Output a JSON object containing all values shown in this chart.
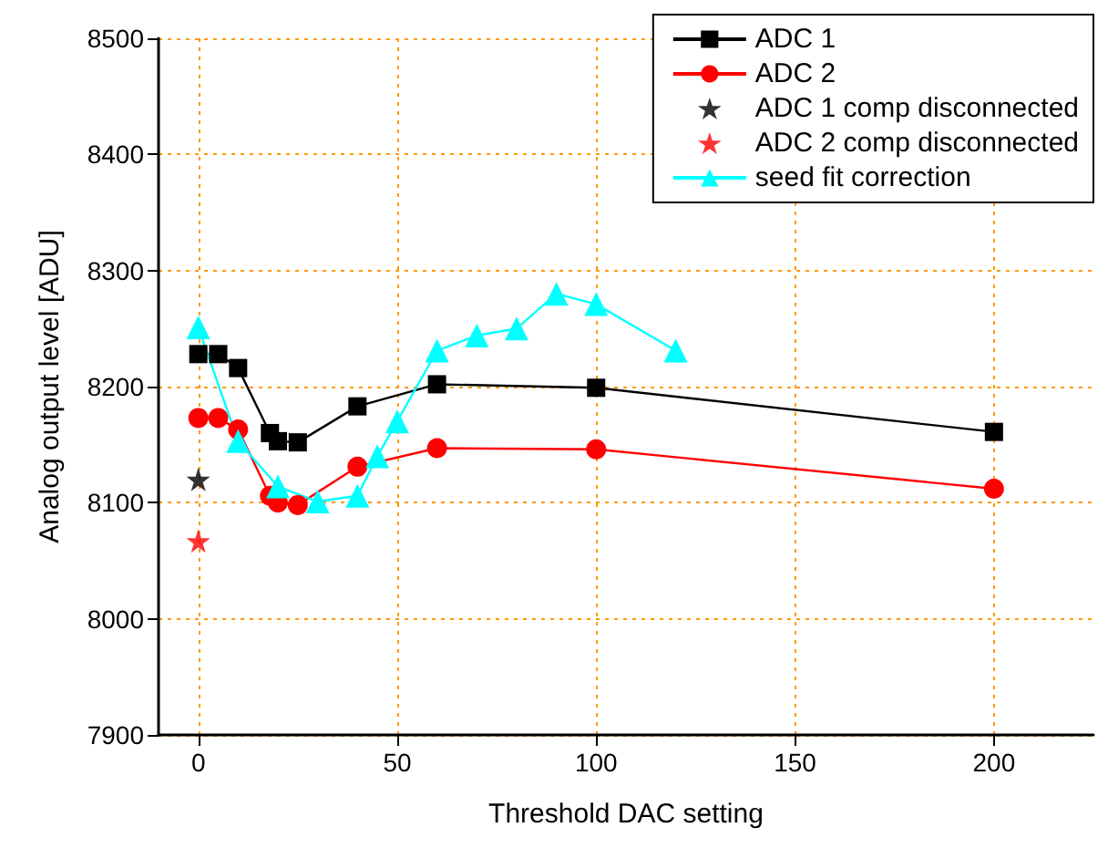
{
  "chart_data": {
    "type": "line",
    "xlabel": "Threshold DAC setting",
    "ylabel": "Analog output level [ADU]",
    "xlim": [
      -10,
      225
    ],
    "xticks": [
      0,
      50,
      100,
      150,
      200
    ],
    "ylim": [
      7900,
      8500
    ],
    "yticks": [
      7900,
      8000,
      8100,
      8200,
      8300,
      8400,
      8500
    ],
    "grid": true,
    "legend": "top right",
    "line_style": "solid",
    "series": [
      {
        "name": "ADC 1",
        "color": "#000000",
        "marker": "square",
        "x": [
          0,
          5,
          10,
          18,
          20,
          25,
          40,
          60,
          100,
          200
        ],
        "values": [
          8228,
          8228,
          8216,
          8160,
          8153,
          8152,
          8183,
          8202,
          8199,
          8161
        ]
      },
      {
        "name": "ADC 2",
        "color": "#ff0000",
        "marker": "circle",
        "x": [
          0,
          5,
          10,
          18,
          20,
          25,
          40,
          60,
          100,
          200
        ],
        "values": [
          8173,
          8173,
          8163,
          8106,
          8100,
          8098,
          8131,
          8147,
          8146,
          8112
        ]
      },
      {
        "name": "ADC 1 comp disconnected",
        "type": "scatter",
        "color": "#000000",
        "marker": "star",
        "x": [
          0
        ],
        "values": [
          8120
        ]
      },
      {
        "name": "ADC 2 comp disconnected",
        "type": "scatter",
        "color": "#ff0000",
        "marker": "star",
        "x": [
          0
        ],
        "values": [
          8067
        ]
      },
      {
        "name": "seed fit correction",
        "color": "#00ffff",
        "marker": "triangle",
        "x": [
          0,
          10,
          20,
          30,
          40,
          45,
          50,
          60,
          70,
          80,
          90,
          100,
          120
        ],
        "values": [
          8251,
          8153,
          8114,
          8101,
          8106,
          8140,
          8170,
          8231,
          8244,
          8250,
          8280,
          8271,
          8231
        ]
      }
    ]
  }
}
